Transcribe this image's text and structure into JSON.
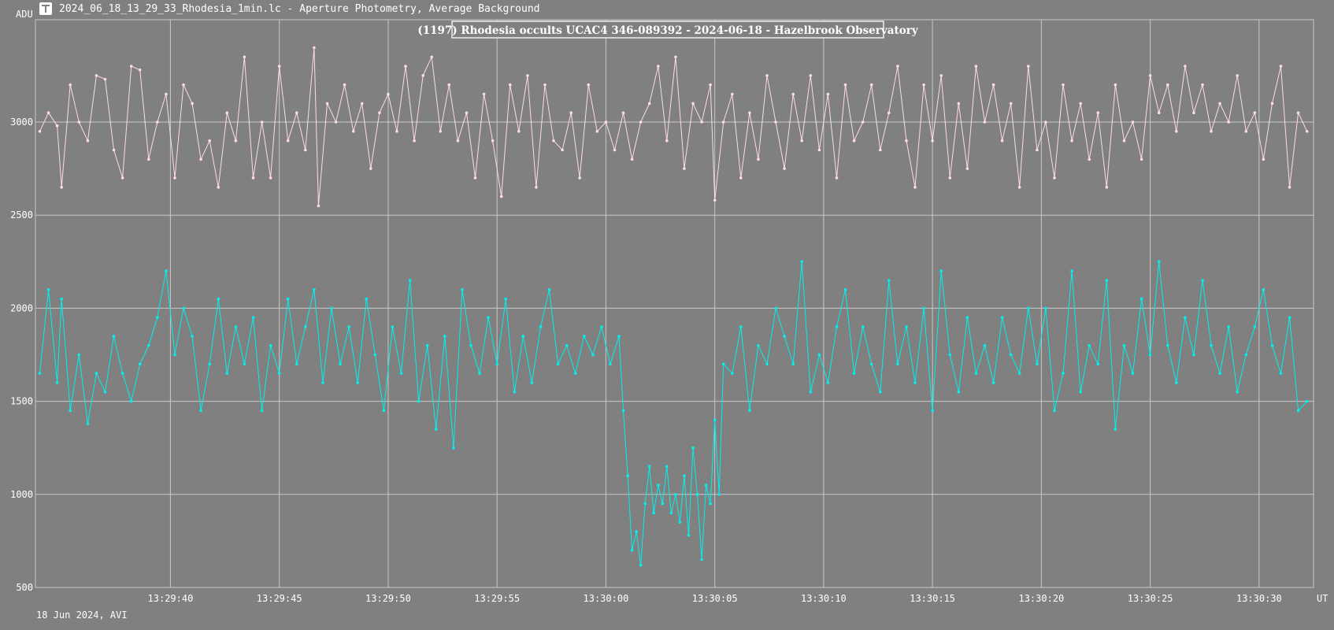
{
  "window": {
    "title": "2024_06_18_13_29_33_Rhodesia_1min.lc - Aperture Photometry, Average Background",
    "footer": "18 Jun 2024, AVI"
  },
  "colors": {
    "background": "#808080",
    "grid": "#c8c8c8",
    "target_series": "#00f0f0",
    "comparison_series": "#ffdcdc"
  },
  "chart_data": {
    "type": "line",
    "title": "(1197) Rhodesia occults UCAC4 346-089392 - 2024-06-18 - Hazelbrook Observatory",
    "ylabel": "ADU",
    "xlabel": "UT",
    "ylim": [
      500,
      3550
    ],
    "xlim_seconds": [
      33.8,
      92.5
    ],
    "y_ticks": [
      500,
      1000,
      1500,
      2000,
      2500,
      3000
    ],
    "x_ticks": [
      {
        "s": 40,
        "label": "13:29:40"
      },
      {
        "s": 45,
        "label": "13:29:45"
      },
      {
        "s": 50,
        "label": "13:29:50"
      },
      {
        "s": 55,
        "label": "13:29:55"
      },
      {
        "s": 60,
        "label": "13:30:00"
      },
      {
        "s": 65,
        "label": "13:30:05"
      },
      {
        "s": 70,
        "label": "13:30:10"
      },
      {
        "s": 75,
        "label": "13:30:15"
      },
      {
        "s": 80,
        "label": "13:30:20"
      },
      {
        "s": 85,
        "label": "13:30:25"
      },
      {
        "s": 90,
        "label": "13:30:30"
      }
    ],
    "grid": true,
    "series": [
      {
        "color": "#ffdcdc",
        "values": [
          [
            34.0,
            2950
          ],
          [
            34.4,
            3050
          ],
          [
            34.8,
            2980
          ],
          [
            35.0,
            2650
          ],
          [
            35.4,
            3200
          ],
          [
            35.8,
            3000
          ],
          [
            36.2,
            2900
          ],
          [
            36.6,
            3250
          ],
          [
            37.0,
            3230
          ],
          [
            37.4,
            2850
          ],
          [
            37.8,
            2700
          ],
          [
            38.2,
            3300
          ],
          [
            38.6,
            3280
          ],
          [
            39.0,
            2800
          ],
          [
            39.4,
            3000
          ],
          [
            39.8,
            3150
          ],
          [
            40.2,
            2700
          ],
          [
            40.6,
            3200
          ],
          [
            41.0,
            3100
          ],
          [
            41.4,
            2800
          ],
          [
            41.8,
            2900
          ],
          [
            42.2,
            2650
          ],
          [
            42.6,
            3050
          ],
          [
            43.0,
            2900
          ],
          [
            43.4,
            3350
          ],
          [
            43.8,
            2700
          ],
          [
            44.2,
            3000
          ],
          [
            44.6,
            2700
          ],
          [
            45.0,
            3300
          ],
          [
            45.4,
            2900
          ],
          [
            45.8,
            3050
          ],
          [
            46.2,
            2850
          ],
          [
            46.6,
            3400
          ],
          [
            46.8,
            2550
          ],
          [
            47.2,
            3100
          ],
          [
            47.6,
            3000
          ],
          [
            48.0,
            3200
          ],
          [
            48.4,
            2950
          ],
          [
            48.8,
            3100
          ],
          [
            49.2,
            2750
          ],
          [
            49.6,
            3050
          ],
          [
            50.0,
            3150
          ],
          [
            50.4,
            2950
          ],
          [
            50.8,
            3300
          ],
          [
            51.2,
            2900
          ],
          [
            51.6,
            3250
          ],
          [
            52.0,
            3350
          ],
          [
            52.4,
            2950
          ],
          [
            52.8,
            3200
          ],
          [
            53.2,
            2900
          ],
          [
            53.6,
            3050
          ],
          [
            54.0,
            2700
          ],
          [
            54.4,
            3150
          ],
          [
            54.8,
            2900
          ],
          [
            55.2,
            2600
          ],
          [
            55.6,
            3200
          ],
          [
            56.0,
            2950
          ],
          [
            56.4,
            3250
          ],
          [
            56.8,
            2650
          ],
          [
            57.2,
            3200
          ],
          [
            57.6,
            2900
          ],
          [
            58.0,
            2850
          ],
          [
            58.4,
            3050
          ],
          [
            58.8,
            2700
          ],
          [
            59.2,
            3200
          ],
          [
            59.6,
            2950
          ],
          [
            60.0,
            3000
          ],
          [
            60.4,
            2850
          ],
          [
            60.8,
            3050
          ],
          [
            61.2,
            2800
          ],
          [
            61.6,
            3000
          ],
          [
            62.0,
            3100
          ],
          [
            62.4,
            3300
          ],
          [
            62.8,
            2900
          ],
          [
            63.2,
            3350
          ],
          [
            63.6,
            2750
          ],
          [
            64.0,
            3100
          ],
          [
            64.4,
            3000
          ],
          [
            64.8,
            3200
          ],
          [
            65.0,
            2580
          ],
          [
            65.4,
            3000
          ],
          [
            65.8,
            3150
          ],
          [
            66.2,
            2700
          ],
          [
            66.6,
            3050
          ],
          [
            67.0,
            2800
          ],
          [
            67.4,
            3250
          ],
          [
            67.8,
            3000
          ],
          [
            68.2,
            2750
          ],
          [
            68.6,
            3150
          ],
          [
            69.0,
            2900
          ],
          [
            69.4,
            3250
          ],
          [
            69.8,
            2850
          ],
          [
            70.2,
            3150
          ],
          [
            70.6,
            2700
          ],
          [
            71.0,
            3200
          ],
          [
            71.4,
            2900
          ],
          [
            71.8,
            3000
          ],
          [
            72.2,
            3200
          ],
          [
            72.6,
            2850
          ],
          [
            73.0,
            3050
          ],
          [
            73.4,
            3300
          ],
          [
            73.8,
            2900
          ],
          [
            74.2,
            2650
          ],
          [
            74.6,
            3200
          ],
          [
            75.0,
            2900
          ],
          [
            75.4,
            3250
          ],
          [
            75.8,
            2700
          ],
          [
            76.2,
            3100
          ],
          [
            76.6,
            2750
          ],
          [
            77.0,
            3300
          ],
          [
            77.4,
            3000
          ],
          [
            77.8,
            3200
          ],
          [
            78.2,
            2900
          ],
          [
            78.6,
            3100
          ],
          [
            79.0,
            2650
          ],
          [
            79.4,
            3300
          ],
          [
            79.8,
            2850
          ],
          [
            80.2,
            3000
          ],
          [
            80.6,
            2700
          ],
          [
            81.0,
            3200
          ],
          [
            81.4,
            2900
          ],
          [
            81.8,
            3100
          ],
          [
            82.2,
            2800
          ],
          [
            82.6,
            3050
          ],
          [
            83.0,
            2650
          ],
          [
            83.4,
            3200
          ],
          [
            83.8,
            2900
          ],
          [
            84.2,
            3000
          ],
          [
            84.6,
            2800
          ],
          [
            85.0,
            3250
          ],
          [
            85.4,
            3050
          ],
          [
            85.8,
            3200
          ],
          [
            86.2,
            2950
          ],
          [
            86.6,
            3300
          ],
          [
            87.0,
            3050
          ],
          [
            87.4,
            3200
          ],
          [
            87.8,
            2950
          ],
          [
            88.2,
            3100
          ],
          [
            88.6,
            3000
          ],
          [
            89.0,
            3250
          ],
          [
            89.4,
            2950
          ],
          [
            89.8,
            3050
          ],
          [
            90.2,
            2800
          ],
          [
            90.6,
            3100
          ],
          [
            91.0,
            3300
          ],
          [
            91.4,
            2650
          ],
          [
            91.8,
            3050
          ],
          [
            92.2,
            2950
          ]
        ]
      },
      {
        "color": "#00f0f0",
        "values": [
          [
            34.0,
            1650
          ],
          [
            34.4,
            2100
          ],
          [
            34.8,
            1600
          ],
          [
            35.0,
            2050
          ],
          [
            35.4,
            1450
          ],
          [
            35.8,
            1750
          ],
          [
            36.2,
            1380
          ],
          [
            36.6,
            1650
          ],
          [
            37.0,
            1550
          ],
          [
            37.4,
            1850
          ],
          [
            37.8,
            1650
          ],
          [
            38.2,
            1500
          ],
          [
            38.6,
            1700
          ],
          [
            39.0,
            1800
          ],
          [
            39.4,
            1950
          ],
          [
            39.8,
            2200
          ],
          [
            40.2,
            1750
          ],
          [
            40.6,
            2000
          ],
          [
            41.0,
            1850
          ],
          [
            41.4,
            1450
          ],
          [
            41.8,
            1700
          ],
          [
            42.2,
            2050
          ],
          [
            42.6,
            1650
          ],
          [
            43.0,
            1900
          ],
          [
            43.4,
            1700
          ],
          [
            43.8,
            1950
          ],
          [
            44.2,
            1450
          ],
          [
            44.6,
            1800
          ],
          [
            45.0,
            1650
          ],
          [
            45.4,
            2050
          ],
          [
            45.8,
            1700
          ],
          [
            46.2,
            1900
          ],
          [
            46.6,
            2100
          ],
          [
            47.0,
            1600
          ],
          [
            47.4,
            2000
          ],
          [
            47.8,
            1700
          ],
          [
            48.2,
            1900
          ],
          [
            48.6,
            1600
          ],
          [
            49.0,
            2050
          ],
          [
            49.4,
            1750
          ],
          [
            49.8,
            1450
          ],
          [
            50.2,
            1900
          ],
          [
            50.6,
            1650
          ],
          [
            51.0,
            2150
          ],
          [
            51.4,
            1500
          ],
          [
            51.8,
            1800
          ],
          [
            52.2,
            1350
          ],
          [
            52.6,
            1850
          ],
          [
            53.0,
            1250
          ],
          [
            53.4,
            2100
          ],
          [
            53.8,
            1800
          ],
          [
            54.2,
            1650
          ],
          [
            54.6,
            1950
          ],
          [
            55.0,
            1700
          ],
          [
            55.4,
            2050
          ],
          [
            55.8,
            1550
          ],
          [
            56.2,
            1850
          ],
          [
            56.6,
            1600
          ],
          [
            57.0,
            1900
          ],
          [
            57.4,
            2100
          ],
          [
            57.8,
            1700
          ],
          [
            58.2,
            1800
          ],
          [
            58.6,
            1650
          ],
          [
            59.0,
            1850
          ],
          [
            59.4,
            1750
          ],
          [
            59.8,
            1900
          ],
          [
            60.2,
            1700
          ],
          [
            60.6,
            1850
          ],
          [
            60.8,
            1450
          ],
          [
            61.0,
            1100
          ],
          [
            61.2,
            700
          ],
          [
            61.4,
            800
          ],
          [
            61.6,
            620
          ],
          [
            61.8,
            950
          ],
          [
            62.0,
            1150
          ],
          [
            62.2,
            900
          ],
          [
            62.4,
            1050
          ],
          [
            62.6,
            950
          ],
          [
            62.8,
            1150
          ],
          [
            63.0,
            900
          ],
          [
            63.2,
            1000
          ],
          [
            63.4,
            850
          ],
          [
            63.6,
            1100
          ],
          [
            63.8,
            780
          ],
          [
            64.0,
            1250
          ],
          [
            64.2,
            1000
          ],
          [
            64.4,
            650
          ],
          [
            64.6,
            1050
          ],
          [
            64.8,
            950
          ],
          [
            65.0,
            1400
          ],
          [
            65.2,
            1000
          ],
          [
            65.4,
            1700
          ],
          [
            65.8,
            1650
          ],
          [
            66.2,
            1900
          ],
          [
            66.6,
            1450
          ],
          [
            67.0,
            1800
          ],
          [
            67.4,
            1700
          ],
          [
            67.8,
            2000
          ],
          [
            68.2,
            1850
          ],
          [
            68.6,
            1700
          ],
          [
            69.0,
            2250
          ],
          [
            69.4,
            1550
          ],
          [
            69.8,
            1750
          ],
          [
            70.2,
            1600
          ],
          [
            70.6,
            1900
          ],
          [
            71.0,
            2100
          ],
          [
            71.4,
            1650
          ],
          [
            71.8,
            1900
          ],
          [
            72.2,
            1700
          ],
          [
            72.6,
            1550
          ],
          [
            73.0,
            2150
          ],
          [
            73.4,
            1700
          ],
          [
            73.8,
            1900
          ],
          [
            74.2,
            1600
          ],
          [
            74.6,
            2000
          ],
          [
            75.0,
            1450
          ],
          [
            75.4,
            2200
          ],
          [
            75.8,
            1750
          ],
          [
            76.2,
            1550
          ],
          [
            76.6,
            1950
          ],
          [
            77.0,
            1650
          ],
          [
            77.4,
            1800
          ],
          [
            77.8,
            1600
          ],
          [
            78.2,
            1950
          ],
          [
            78.6,
            1750
          ],
          [
            79.0,
            1650
          ],
          [
            79.4,
            2000
          ],
          [
            79.8,
            1700
          ],
          [
            80.2,
            2000
          ],
          [
            80.6,
            1450
          ],
          [
            81.0,
            1650
          ],
          [
            81.4,
            2200
          ],
          [
            81.8,
            1550
          ],
          [
            82.2,
            1800
          ],
          [
            82.6,
            1700
          ],
          [
            83.0,
            2150
          ],
          [
            83.4,
            1350
          ],
          [
            83.8,
            1800
          ],
          [
            84.2,
            1650
          ],
          [
            84.6,
            2050
          ],
          [
            85.0,
            1750
          ],
          [
            85.4,
            2250
          ],
          [
            85.8,
            1800
          ],
          [
            86.2,
            1600
          ],
          [
            86.6,
            1950
          ],
          [
            87.0,
            1750
          ],
          [
            87.4,
            2150
          ],
          [
            87.8,
            1800
          ],
          [
            88.2,
            1650
          ],
          [
            88.6,
            1900
          ],
          [
            89.0,
            1550
          ],
          [
            89.4,
            1750
          ],
          [
            89.8,
            1900
          ],
          [
            90.2,
            2100
          ],
          [
            90.6,
            1800
          ],
          [
            91.0,
            1650
          ],
          [
            91.4,
            1950
          ],
          [
            91.8,
            1450
          ],
          [
            92.2,
            1500
          ]
        ]
      }
    ]
  }
}
